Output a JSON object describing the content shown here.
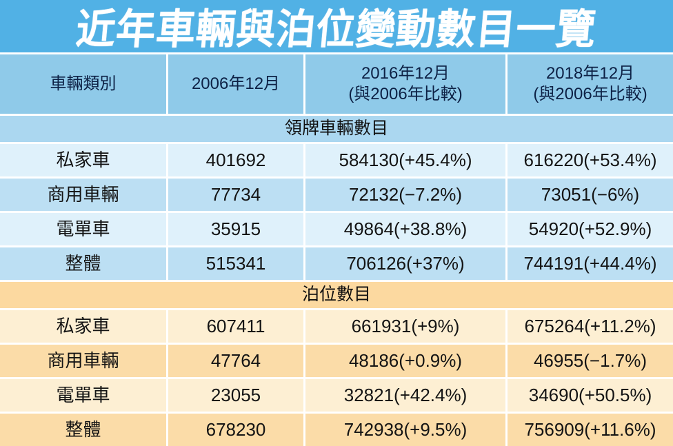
{
  "title": "近年車輛與泊位變動數目一覽",
  "colors": {
    "title_bg": "#51B1E5",
    "title_text": "#FFFFFF",
    "header_bg": "#8FCAE9",
    "header_text": "#0D2145",
    "band_blue": "#ABD7F0",
    "row_blue_light": "#DFF1FB",
    "row_blue_mid": "#BCDFF3",
    "band_orange": "#FCD9A0",
    "row_orange_light": "#FDEFD3",
    "row_orange_mid": "#FBDCA8",
    "grid_line": "#FFFFFF",
    "body_text": "#141414"
  },
  "chart_data": {
    "type": "table",
    "title": "近年車輛與泊位變動數目一覽",
    "columns": [
      {
        "line1": "車輛類別",
        "line2": ""
      },
      {
        "line1": "2006年12月",
        "line2": ""
      },
      {
        "line1": "2016年12月",
        "line2": "(與2006年比較)"
      },
      {
        "line1": "2018年12月",
        "line2": "(與2006年比較)"
      }
    ],
    "sections": [
      {
        "label": "領牌車輛數目",
        "rows": [
          [
            "私家車",
            "401692",
            "584130(+45.4%)",
            "616220(+53.4%)"
          ],
          [
            "商用車輛",
            "77734",
            "72132(−7.2%)",
            "73051(−6%)"
          ],
          [
            "電單車",
            "35915",
            "49864(+38.8%)",
            "54920(+52.9%)"
          ],
          [
            "整體",
            "515341",
            "706126(+37%)",
            "744191(+44.4%)"
          ]
        ]
      },
      {
        "label": "泊位數目",
        "rows": [
          [
            "私家車",
            "607411",
            "661931(+9%)",
            "675264(+11.2%)"
          ],
          [
            "商用車輛",
            "47764",
            "48186(+0.9%)",
            "46955(−1.7%)"
          ],
          [
            "電單車",
            "23055",
            "32821(+42.4%)",
            "34690(+50.5%)"
          ],
          [
            "整體",
            "678230",
            "742938(+9.5%)",
            "756909(+11.6%)"
          ]
        ]
      }
    ]
  }
}
